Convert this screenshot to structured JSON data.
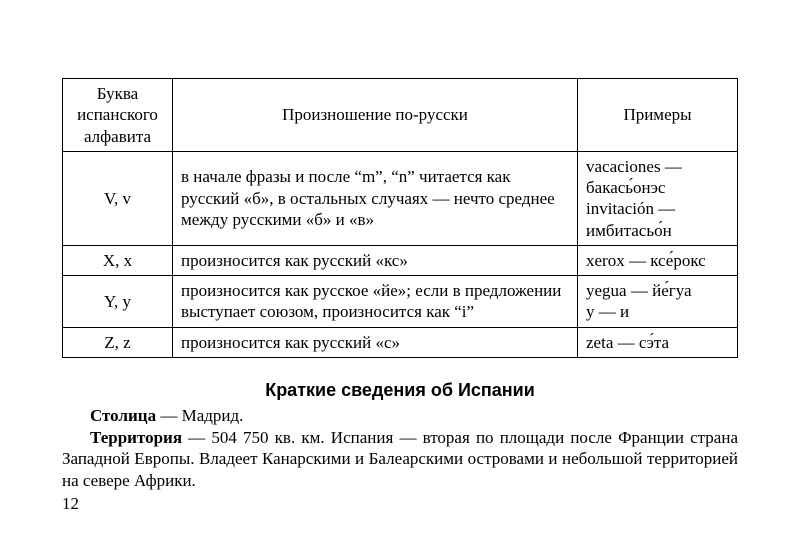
{
  "table": {
    "header": {
      "col1": "Буква испанского алфавита",
      "col2": "Произношение по-русски",
      "col3": "Примеры"
    },
    "rows": [
      {
        "letter": "V, v",
        "desc": "в начале фразы и после “m”, “n” читается как русский «б», в остальных случаях — нечто среднее между русскими «б» и «в»",
        "ex": "vacaciones — бакась́онэс invitación — имбитасьо́н"
      },
      {
        "letter": "X, x",
        "desc": "произносится как русский «кс»",
        "ex": "xerox — ксе́рокс"
      },
      {
        "letter": "Y, y",
        "desc": "произносится как русское «йе»; если в предложении выступает союзом, произносится как “i”",
        "ex": "yegua — йе́гуа y — и"
      },
      {
        "letter": "Z, z",
        "desc": "произносится как русский «с»",
        "ex": "zeta — сэ́та"
      }
    ]
  },
  "section": {
    "title": "Краткие сведения об Испании",
    "p1_bold": "Столица",
    "p1_rest": " — Мадрид.",
    "p2_bold": "Территория",
    "p2_rest": " — 504 750 кв. км. Испания — вторая по площади после Франции страна Западной Европы. Владеет Канарскими и Балеарскими островами и небольшой территорией на севере Африки."
  },
  "page_number": "12"
}
